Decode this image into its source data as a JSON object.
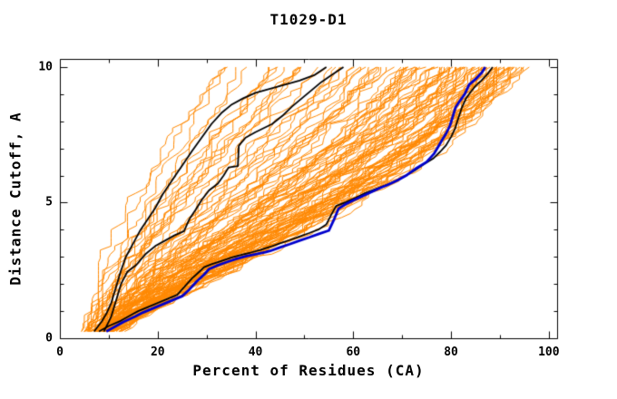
{
  "page": {
    "background": "#ffffff"
  },
  "chart_data": {
    "type": "line",
    "title": "T1029-D1",
    "xlabel": "Percent of Residues (CA)",
    "ylabel": "Distance Cutoff, A",
    "xlim": [
      0,
      101.7
    ],
    "ylim": [
      0,
      10.3
    ],
    "x_major_ticks": [
      0,
      20,
      40,
      60,
      80,
      100
    ],
    "x_minor_ticks": [
      10,
      30,
      50,
      70,
      90
    ],
    "y_major_ticks": [
      0,
      5,
      10
    ],
    "y_minor_ticks": [
      1,
      2,
      3,
      4,
      6,
      7,
      8,
      9
    ],
    "grid": false,
    "legend": "none",
    "axis_color": "#000000",
    "series": [
      {
        "name": "reference-model-black-1",
        "color": "#000000",
        "width": 1.8,
        "points": [
          [
            7,
            0.25
          ],
          [
            8.5,
            0.6
          ],
          [
            9.5,
            0.9
          ],
          [
            10.5,
            1.3
          ],
          [
            11.5,
            1.9
          ],
          [
            12.5,
            2.5
          ],
          [
            13.5,
            3.0
          ],
          [
            15,
            3.5
          ],
          [
            16.5,
            4.0
          ],
          [
            18,
            4.4
          ],
          [
            19.5,
            4.8
          ],
          [
            21,
            5.3
          ],
          [
            22.5,
            5.7
          ],
          [
            24,
            6.1
          ],
          [
            25.5,
            6.5
          ],
          [
            27,
            6.9
          ],
          [
            29,
            7.4
          ],
          [
            31,
            7.9
          ],
          [
            33,
            8.3
          ],
          [
            35,
            8.6
          ],
          [
            37.5,
            8.85
          ],
          [
            40,
            9.05
          ],
          [
            43,
            9.2
          ],
          [
            46,
            9.35
          ],
          [
            49,
            9.5
          ],
          [
            52,
            9.7
          ],
          [
            54.5,
            10.0
          ]
        ]
      },
      {
        "name": "reference-model-black-2",
        "color": "#000000",
        "width": 1.8,
        "points": [
          [
            9,
            0.25
          ],
          [
            10.5,
            0.8
          ],
          [
            11.5,
            1.4
          ],
          [
            12.5,
            2.0
          ],
          [
            13.8,
            2.45
          ],
          [
            15.6,
            2.7
          ],
          [
            17.5,
            3.1
          ],
          [
            19.5,
            3.4
          ],
          [
            21.5,
            3.6
          ],
          [
            23.5,
            3.8
          ],
          [
            25.4,
            3.95
          ],
          [
            26.5,
            4.4
          ],
          [
            27.8,
            4.75
          ],
          [
            29,
            5.1
          ],
          [
            30.5,
            5.45
          ],
          [
            32.3,
            5.7
          ],
          [
            33.5,
            6.0
          ],
          [
            34.5,
            6.3
          ],
          [
            36.4,
            6.35
          ],
          [
            36.6,
            7.1
          ],
          [
            38,
            7.4
          ],
          [
            40,
            7.6
          ],
          [
            43.4,
            7.9
          ],
          [
            45.5,
            8.2
          ],
          [
            47.5,
            8.55
          ],
          [
            49.5,
            8.85
          ],
          [
            51.5,
            9.15
          ],
          [
            53.5,
            9.45
          ],
          [
            55.5,
            9.7
          ],
          [
            58,
            10.0
          ]
        ]
      },
      {
        "name": "reference-model-black-3",
        "color": "#000000",
        "width": 1.8,
        "points": [
          [
            8,
            0.25
          ],
          [
            10,
            0.45
          ],
          [
            12.5,
            0.65
          ],
          [
            14.5,
            0.85
          ],
          [
            16,
            1.0
          ],
          [
            18,
            1.15
          ],
          [
            20,
            1.3
          ],
          [
            22,
            1.45
          ],
          [
            24,
            1.6
          ],
          [
            25.5,
            1.9
          ],
          [
            27,
            2.2
          ],
          [
            28.5,
            2.45
          ],
          [
            29.5,
            2.62
          ],
          [
            31,
            2.73
          ],
          [
            33,
            2.85
          ],
          [
            35,
            2.97
          ],
          [
            37,
            3.07
          ],
          [
            39,
            3.16
          ],
          [
            41,
            3.26
          ],
          [
            43,
            3.37
          ],
          [
            45,
            3.5
          ],
          [
            47,
            3.62
          ],
          [
            49,
            3.75
          ],
          [
            51,
            3.88
          ],
          [
            53,
            4.02
          ],
          [
            54.5,
            4.2
          ],
          [
            55.5,
            4.55
          ],
          [
            56.5,
            4.88
          ],
          [
            58.5,
            5.02
          ],
          [
            60.5,
            5.18
          ],
          [
            62.5,
            5.36
          ],
          [
            64.5,
            5.5
          ],
          [
            66.5,
            5.63
          ],
          [
            68.5,
            5.78
          ],
          [
            70.5,
            5.97
          ],
          [
            72.5,
            6.18
          ],
          [
            74.5,
            6.42
          ],
          [
            76.3,
            6.62
          ],
          [
            77.8,
            6.88
          ],
          [
            79,
            7.12
          ],
          [
            80,
            7.42
          ],
          [
            80.8,
            7.72
          ],
          [
            81.5,
            8.12
          ],
          [
            82.2,
            8.5
          ],
          [
            83,
            8.82
          ],
          [
            84,
            9.08
          ],
          [
            85,
            9.3
          ],
          [
            86.2,
            9.5
          ],
          [
            87.5,
            9.75
          ],
          [
            88.5,
            10.0
          ]
        ]
      },
      {
        "name": "best-model-blue",
        "color": "#0000cc",
        "width": 2.8,
        "points": [
          [
            9.5,
            0.25
          ],
          [
            11,
            0.4
          ],
          [
            13,
            0.6
          ],
          [
            15.4,
            0.8
          ],
          [
            17,
            0.95
          ],
          [
            19,
            1.1
          ],
          [
            21,
            1.25
          ],
          [
            23,
            1.4
          ],
          [
            25,
            1.55
          ],
          [
            26.5,
            1.8
          ],
          [
            28,
            2.1
          ],
          [
            29.5,
            2.35
          ],
          [
            30.5,
            2.55
          ],
          [
            32,
            2.67
          ],
          [
            34,
            2.8
          ],
          [
            36,
            2.92
          ],
          [
            38,
            3.02
          ],
          [
            40,
            3.1
          ],
          [
            42,
            3.17
          ],
          [
            43,
            3.22
          ],
          [
            45,
            3.35
          ],
          [
            47,
            3.47
          ],
          [
            49,
            3.6
          ],
          [
            51,
            3.72
          ],
          [
            53,
            3.85
          ],
          [
            55,
            3.97
          ],
          [
            56,
            4.35
          ],
          [
            57,
            4.78
          ],
          [
            58.5,
            4.95
          ],
          [
            60,
            5.08
          ],
          [
            62,
            5.25
          ],
          [
            64,
            5.42
          ],
          [
            65.7,
            5.56
          ],
          [
            67,
            5.65
          ],
          [
            69,
            5.82
          ],
          [
            71,
            6.02
          ],
          [
            73,
            6.28
          ],
          [
            75,
            6.5
          ],
          [
            76.5,
            6.8
          ],
          [
            77.5,
            7.1
          ],
          [
            78.3,
            7.35
          ],
          [
            79,
            7.55
          ],
          [
            79.8,
            7.85
          ],
          [
            80.4,
            8.2
          ],
          [
            80.9,
            8.5
          ],
          [
            81.8,
            8.75
          ],
          [
            82.8,
            9.0
          ],
          [
            83.7,
            9.35
          ],
          [
            85,
            9.55
          ],
          [
            86.3,
            9.8
          ],
          [
            87,
            10.0
          ]
        ]
      }
    ],
    "model_ensemble": {
      "name": "server-models-orange",
      "color": "#ff8800",
      "width": 1,
      "count": 110,
      "seed": 20291,
      "y_start": 0.25,
      "y_end": 10.0,
      "x_start_range": [
        3,
        11
      ],
      "x_end_range": [
        33,
        95.5
      ]
    }
  }
}
